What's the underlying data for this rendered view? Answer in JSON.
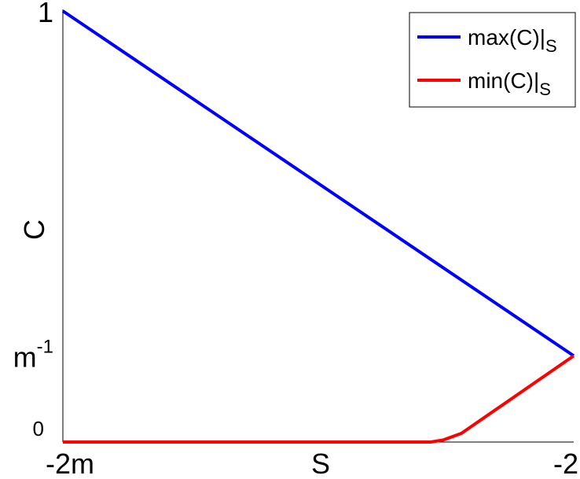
{
  "chart_data": {
    "type": "line",
    "xlabel": "S",
    "ylabel": "C",
    "x_ticks": [
      {
        "value": 0,
        "label": "-2m"
      },
      {
        "value": 1,
        "label": "-2"
      }
    ],
    "y_ticks": [
      {
        "value": 0,
        "label": "0",
        "sup": ""
      },
      {
        "value": 0.2,
        "label": "m",
        "sup": "-1"
      },
      {
        "value": 1,
        "label": "1",
        "sup": ""
      }
    ],
    "xlim": [
      0,
      1
    ],
    "ylim": [
      0,
      1
    ],
    "grid": false,
    "legend_position": "top-right",
    "series": [
      {
        "name": "max(C)|",
        "name_sub": "S",
        "color": "#0000ff",
        "points": [
          [
            0,
            1.0
          ],
          [
            1,
            0.2
          ]
        ]
      },
      {
        "name": "min(C)|",
        "name_sub": "S",
        "color": "#ff0000",
        "points": [
          [
            0,
            0
          ],
          [
            0.72,
            0
          ],
          [
            0.745,
            0.005
          ],
          [
            0.78,
            0.02
          ],
          [
            1,
            0.2
          ]
        ]
      }
    ]
  }
}
